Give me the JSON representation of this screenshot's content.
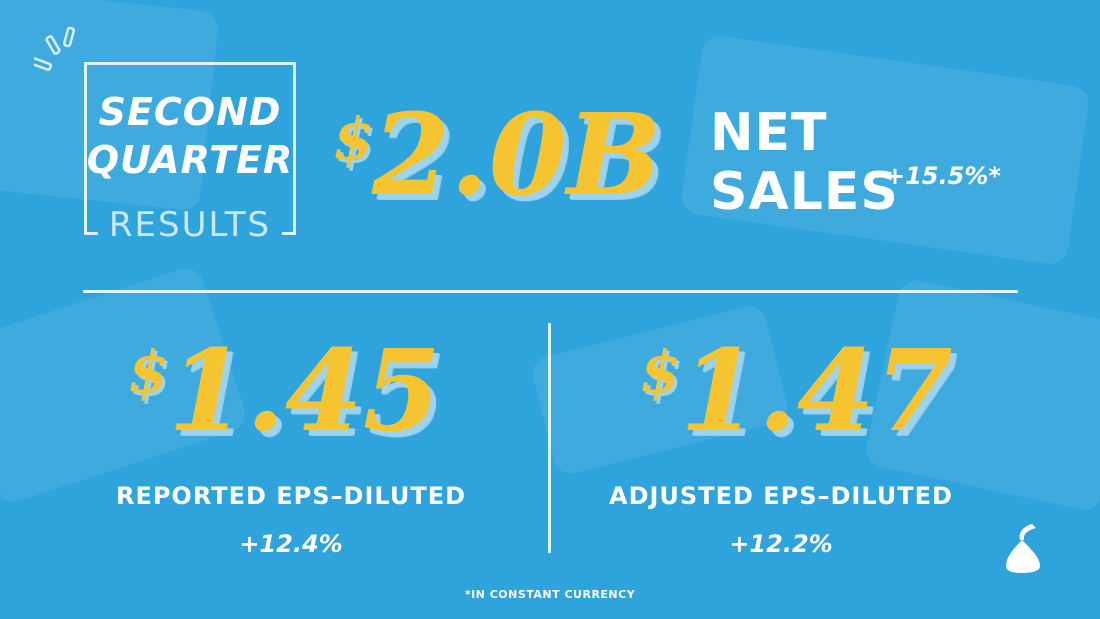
{
  "header": {
    "title_line1": "SECOND",
    "title_line2": "QUARTER",
    "title_line3": "RESULTS"
  },
  "net_sales": {
    "currency": "$",
    "value": "2.0B",
    "label_line1": "NET",
    "label_line2": "SALES",
    "growth": "+15.5%*"
  },
  "reported_eps": {
    "currency": "$",
    "value": "1.45",
    "label": "REPORTED EPS–DILUTED",
    "growth": "+12.4%"
  },
  "adjusted_eps": {
    "currency": "$",
    "value": "1.47",
    "label": "ADJUSTED EPS–DILUTED",
    "growth": "+12.2%"
  },
  "footnote": "*IN CONSTANT CURRENCY",
  "colors": {
    "background": "#2fa3dc",
    "accent": "#f6c431",
    "text": "#ffffff"
  },
  "icons": {
    "corner": "sparkle-lines-icon",
    "brand": "kiss-logo-icon"
  }
}
